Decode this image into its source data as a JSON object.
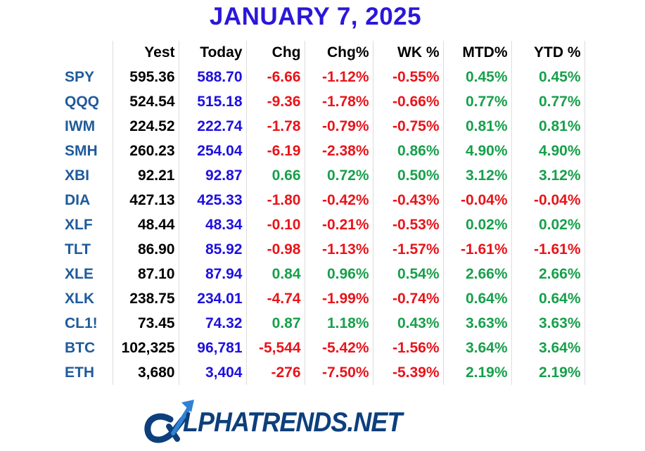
{
  "title": "JANUARY 7, 2025",
  "table": {
    "headers": [
      "",
      "Yest",
      "Today",
      "Chg",
      "Chg%",
      "WK %",
      "MTD%",
      "YTD %"
    ],
    "rows": [
      {
        "sym": "SPY",
        "yest": "595.36",
        "today": "588.70",
        "chg": "-6.66",
        "chgpct": "-1.12%",
        "wk": "-0.55%",
        "mtd": "0.45%",
        "ytd": "0.45%"
      },
      {
        "sym": "QQQ",
        "yest": "524.54",
        "today": "515.18",
        "chg": "-9.36",
        "chgpct": "-1.78%",
        "wk": "-0.66%",
        "mtd": "0.77%",
        "ytd": "0.77%"
      },
      {
        "sym": "IWM",
        "yest": "224.52",
        "today": "222.74",
        "chg": "-1.78",
        "chgpct": "-0.79%",
        "wk": "-0.75%",
        "mtd": "0.81%",
        "ytd": "0.81%"
      },
      {
        "sym": "SMH",
        "yest": "260.23",
        "today": "254.04",
        "chg": "-6.19",
        "chgpct": "-2.38%",
        "wk": "0.86%",
        "mtd": "4.90%",
        "ytd": "4.90%"
      },
      {
        "sym": "XBI",
        "yest": "92.21",
        "today": "92.87",
        "chg": "0.66",
        "chgpct": "0.72%",
        "wk": "0.50%",
        "mtd": "3.12%",
        "ytd": "3.12%"
      },
      {
        "sym": "DIA",
        "yest": "427.13",
        "today": "425.33",
        "chg": "-1.80",
        "chgpct": "-0.42%",
        "wk": "-0.43%",
        "mtd": "-0.04%",
        "ytd": "-0.04%"
      },
      {
        "sym": "XLF",
        "yest": "48.44",
        "today": "48.34",
        "chg": "-0.10",
        "chgpct": "-0.21%",
        "wk": "-0.53%",
        "mtd": "0.02%",
        "ytd": "0.02%"
      },
      {
        "sym": "TLT",
        "yest": "86.90",
        "today": "85.92",
        "chg": "-0.98",
        "chgpct": "-1.13%",
        "wk": "-1.57%",
        "mtd": "-1.61%",
        "ytd": "-1.61%"
      },
      {
        "sym": "XLE",
        "yest": "87.10",
        "today": "87.94",
        "chg": "0.84",
        "chgpct": "0.96%",
        "wk": "0.54%",
        "mtd": "2.66%",
        "ytd": "2.66%"
      },
      {
        "sym": "XLK",
        "yest": "238.75",
        "today": "234.01",
        "chg": "-4.74",
        "chgpct": "-1.99%",
        "wk": "-0.74%",
        "mtd": "0.64%",
        "ytd": "0.64%"
      },
      {
        "sym": "CL1!",
        "yest": "73.45",
        "today": "74.32",
        "chg": "0.87",
        "chgpct": "1.18%",
        "wk": "0.43%",
        "mtd": "3.63%",
        "ytd": "3.63%"
      },
      {
        "sym": "BTC",
        "yest": "102,325",
        "today": "96,781",
        "chg": "-5,544",
        "chgpct": "-5.42%",
        "wk": "-1.56%",
        "mtd": "3.64%",
        "ytd": "3.64%"
      },
      {
        "sym": "ETH",
        "yest": "3,680",
        "today": "3,404",
        "chg": "-276",
        "chgpct": "-7.50%",
        "wk": "-5.39%",
        "mtd": "2.19%",
        "ytd": "2.19%"
      }
    ]
  },
  "logo": {
    "icon": "alpha-arrow-icon",
    "text_alpha": "LPHA",
    "text_trends": "TRENDS.NET"
  },
  "colors": {
    "title": "#2b17d9",
    "symbol": "#1f5a9c",
    "today": "#1d10e0",
    "positive": "#17a04b",
    "negative": "#e8141b",
    "logo": "#0d3f7c"
  }
}
